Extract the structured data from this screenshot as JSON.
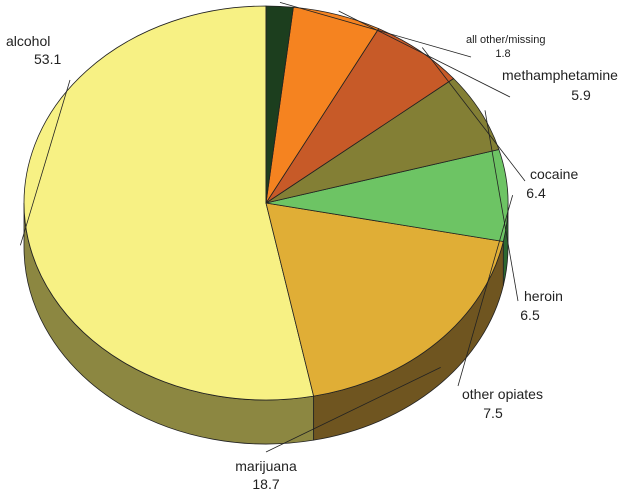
{
  "chart_data": {
    "type": "pie",
    "style": "3d",
    "title": "",
    "start_angle_deg": 270,
    "direction": "counterclockwise",
    "slices": [
      {
        "key": "alcohol",
        "label": "alcohol",
        "value": 53.1,
        "value_text": "53.1",
        "color": "#F7F184",
        "side_color": "#8C8741"
      },
      {
        "key": "marijuana",
        "label": "marijuana",
        "value": 18.7,
        "value_text": "18.7",
        "color": "#E0AE36",
        "side_color": "#6F5520"
      },
      {
        "key": "other_opiates",
        "label": "other opiates",
        "value": 7.5,
        "value_text": "7.5",
        "color": "#6DC464",
        "side_color": "#2D6830"
      },
      {
        "key": "heroin",
        "label": "heroin",
        "value": 6.5,
        "value_text": "6.5",
        "color": "#837F35",
        "side_color": "#3E3C18"
      },
      {
        "key": "cocaine",
        "label": "cocaine",
        "value": 6.4,
        "value_text": "6.4",
        "color": "#C75A28",
        "side_color": "#652C12"
      },
      {
        "key": "methamphetamine",
        "label": "methamphetamine",
        "value": 5.9,
        "value_text": "5.9",
        "color": "#F58320",
        "side_color": "#8A4710"
      },
      {
        "key": "all_other_missing",
        "label": "all other/missing",
        "value": 1.8,
        "value_text": "1.8",
        "color": "#1C3E1E",
        "side_color": "#0D1E0E"
      }
    ]
  }
}
